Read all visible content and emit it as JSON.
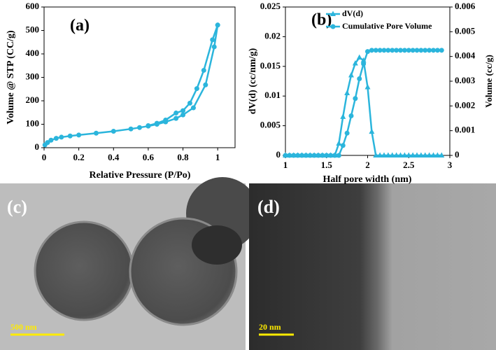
{
  "chart_data": [
    {
      "type": "line",
      "annotation": "(a)",
      "x_label": "Relative Pressure (P/Po)",
      "y_label": "Volume @ STP (CC/g)",
      "xlim": [
        0,
        1.1
      ],
      "xticks": [
        0,
        0.2,
        0.4,
        0.6,
        0.8,
        1
      ],
      "ylim": [
        0,
        600
      ],
      "yticks": [
        0,
        100,
        200,
        300,
        400,
        500,
        600
      ],
      "series": [
        {
          "color": "#2bb5dc",
          "marker": "circle",
          "x": [
            0.005,
            0.02,
            0.04,
            0.07,
            0.1,
            0.15,
            0.2,
            0.3,
            0.4,
            0.5,
            0.55,
            0.6,
            0.65,
            0.7,
            0.76,
            0.8,
            0.86,
            0.93,
            0.98,
            1.0
          ],
          "values": [
            12,
            22,
            32,
            40,
            45,
            50,
            54,
            62,
            70,
            80,
            86,
            92,
            100,
            110,
            125,
            140,
            170,
            268,
            430,
            523
          ]
        },
        {
          "color": "#2bb5dc",
          "marker": "circle",
          "x": [
            1.0,
            0.97,
            0.92,
            0.88,
            0.84,
            0.8,
            0.76,
            0.7,
            0.65,
            0.6
          ],
          "values": [
            523,
            460,
            330,
            252,
            190,
            158,
            148,
            118,
            104,
            94
          ]
        }
      ]
    },
    {
      "type": "line",
      "annotation": "(b)",
      "x_label": "Half pore width (nm)",
      "y_label": "dV(d) (cc/nm/g)",
      "y2_label": "Volume (cc/g)",
      "xlim": [
        1,
        3
      ],
      "xticks": [
        1,
        1.5,
        2,
        2.5,
        3
      ],
      "ylim": [
        0,
        0.025
      ],
      "yticks": [
        0,
        0.005,
        0.01,
        0.015,
        0.02,
        0.025
      ],
      "y2lim": [
        0,
        0.006
      ],
      "y2ticks": [
        0,
        0.001,
        0.002,
        0.003,
        0.004,
        0.005,
        0.006
      ],
      "x": [
        1,
        1.05,
        1.1,
        1.15,
        1.2,
        1.25,
        1.3,
        1.35,
        1.4,
        1.45,
        1.5,
        1.55,
        1.6,
        1.65,
        1.7,
        1.75,
        1.8,
        1.85,
        1.9,
        1.95,
        2,
        2.05,
        2.1,
        2.15,
        2.2,
        2.25,
        2.3,
        2.35,
        2.4,
        2.45,
        2.5,
        2.55,
        2.6,
        2.65,
        2.7,
        2.75,
        2.8,
        2.85,
        2.9
      ],
      "series": [
        {
          "name": "dV(d)",
          "color": "#2bb5dc",
          "marker": "triangle",
          "values": [
            0,
            0,
            0,
            0,
            0,
            0,
            0,
            0,
            0,
            0,
            0,
            0,
            0,
            0.002,
            0.0065,
            0.0105,
            0.0135,
            0.0155,
            0.0165,
            0.016,
            0.0115,
            0.004,
            0,
            0,
            0,
            0,
            0,
            0,
            0,
            0,
            0,
            0,
            0,
            0,
            0,
            0,
            0,
            0,
            0
          ]
        },
        {
          "name": "Cumulative Pore Volume",
          "color": "#2bb5dc",
          "marker": "circle",
          "axis": "y2",
          "values": [
            0,
            0,
            0,
            0,
            0,
            0,
            0,
            0,
            0,
            0,
            0,
            0,
            0,
            0,
            0.0004,
            0.0009,
            0.0016,
            0.0023,
            0.0031,
            0.0037,
            0.0042,
            0.00425,
            0.00425,
            0.00425,
            0.00425,
            0.00425,
            0.00425,
            0.00425,
            0.00425,
            0.00425,
            0.00425,
            0.00425,
            0.00425,
            0.00425,
            0.00425,
            0.00425,
            0.00425,
            0.00425,
            0.00425
          ]
        }
      ]
    }
  ],
  "panels": [
    {
      "label": "(c)",
      "scale_bar": "500 nm"
    },
    {
      "label": "(d)",
      "scale_bar": "20 nm"
    }
  ]
}
